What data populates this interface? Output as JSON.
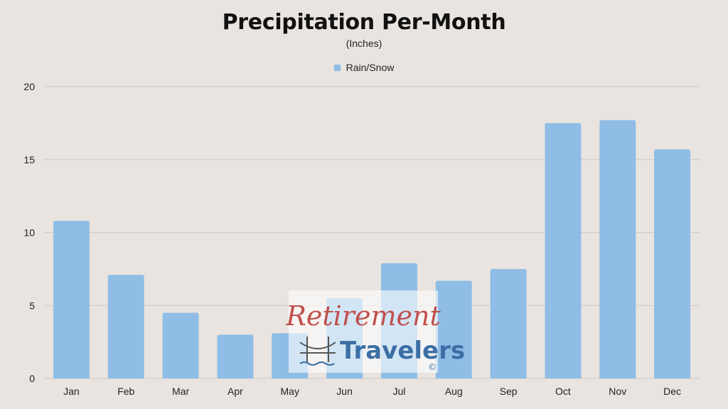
{
  "chart_data": {
    "type": "bar",
    "title": "Precipitation Per-Month",
    "subtitle": "(Inches)",
    "categories": [
      "Jan",
      "Feb",
      "Mar",
      "Apr",
      "May",
      "Jun",
      "Jul",
      "Aug",
      "Sep",
      "Oct",
      "Nov",
      "Dec"
    ],
    "series": [
      {
        "name": "Rain/Snow",
        "values": [
          10.8,
          7.1,
          4.5,
          3.0,
          3.1,
          5.5,
          7.9,
          6.7,
          7.5,
          17.5,
          17.7,
          15.7
        ],
        "color": "#8fbde6"
      }
    ],
    "ylim": [
      0,
      20
    ],
    "yticks": [
      0,
      5,
      10,
      15,
      20
    ],
    "grid": true,
    "legend_position": "top-center"
  },
  "watermark": {
    "line1": "Retirement",
    "line2": "Travelers",
    "symbol": "©",
    "icon": "bridge-icon"
  },
  "colors": {
    "background": "#e9e4df",
    "gridline": "#cfcac5",
    "bar": "#8fbde6"
  }
}
